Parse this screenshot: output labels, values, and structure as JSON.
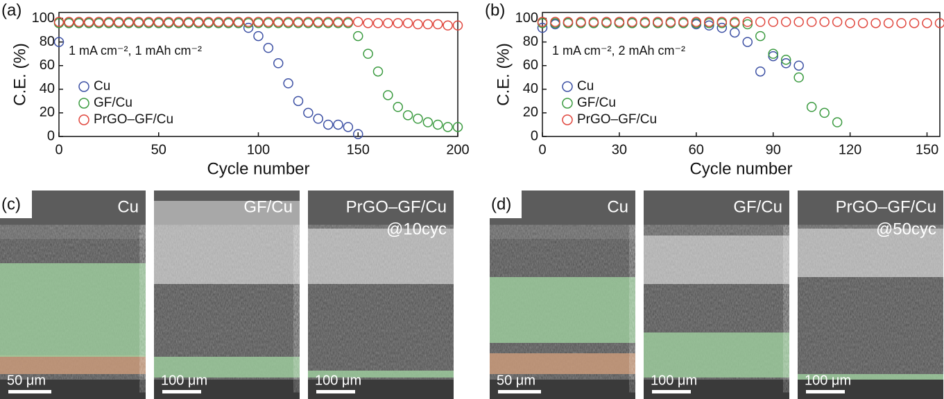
{
  "chart_data": [
    {
      "type": "scatter",
      "panel": "(a)",
      "annotation": "1 mA cm⁻², 1 mAh cm⁻²",
      "x_label": "Cycle number",
      "y_label": "C.E. (%)",
      "x": [
        0,
        5,
        10,
        15,
        20,
        25,
        30,
        35,
        40,
        45,
        50,
        55,
        60,
        65,
        70,
        75,
        80,
        85,
        90,
        95,
        100,
        105,
        110,
        115,
        120,
        125,
        130,
        135,
        140,
        145,
        150,
        155,
        160,
        165,
        170,
        175,
        180,
        185,
        190,
        195,
        200
      ],
      "xlim": [
        0,
        200
      ],
      "xticks": [
        0,
        50,
        100,
        150,
        200
      ],
      "ylim": [
        0,
        105
      ],
      "yticks": [
        0,
        20,
        40,
        60,
        80,
        100
      ],
      "series": [
        {
          "name": "Cu",
          "color": "#3b4fa3",
          "values": [
            80,
            96,
            96,
            96,
            96,
            96,
            96,
            96,
            96,
            96,
            96,
            96,
            96,
            96,
            96,
            96,
            96,
            96,
            96,
            92,
            85,
            75,
            62,
            45,
            30,
            20,
            15,
            10,
            10,
            8,
            2,
            null,
            null,
            null,
            null,
            null,
            null,
            null,
            null,
            null,
            null
          ]
        },
        {
          "name": "GF/Cu",
          "color": "#3a9a3f",
          "values": [
            96,
            96,
            96,
            96,
            96,
            96,
            96,
            96,
            96,
            96,
            96,
            96,
            96,
            96,
            96,
            96,
            96,
            96,
            96,
            96,
            96,
            96,
            96,
            96,
            96,
            96,
            96,
            96,
            96,
            96,
            85,
            70,
            55,
            35,
            25,
            18,
            15,
            12,
            10,
            8,
            8
          ]
        },
        {
          "name": "PrGO–GF/Cu",
          "color": "#e0453c",
          "values": [
            97,
            97,
            97,
            97,
            97,
            97,
            97,
            97,
            97,
            97,
            97,
            97,
            97,
            97,
            97,
            97,
            97,
            97,
            97,
            97,
            97,
            97,
            97,
            97,
            97,
            97,
            97,
            97,
            97,
            97,
            97,
            96,
            96,
            96,
            96,
            96,
            95,
            95,
            95,
            94,
            94
          ]
        }
      ]
    },
    {
      "type": "scatter",
      "panel": "(b)",
      "annotation": "1 mA cm⁻², 2 mAh cm⁻²",
      "x_label": "Cycle number",
      "y_label": "C.E. (%)",
      "x": [
        0,
        5,
        10,
        15,
        20,
        25,
        30,
        35,
        40,
        45,
        50,
        55,
        60,
        65,
        70,
        75,
        80,
        85,
        90,
        95,
        100,
        105,
        110,
        115,
        120,
        125,
        130,
        135,
        140,
        145,
        150,
        155
      ],
      "xlim": [
        0,
        155
      ],
      "xticks": [
        0,
        30,
        60,
        90,
        120,
        150
      ],
      "ylim": [
        0,
        105
      ],
      "yticks": [
        0,
        20,
        40,
        60,
        80,
        100
      ],
      "series": [
        {
          "name": "Cu",
          "color": "#3b4fa3",
          "values": [
            92,
            95,
            96,
            96,
            96,
            96,
            96,
            96,
            96,
            96,
            96,
            96,
            95,
            94,
            92,
            88,
            80,
            55,
            68,
            62,
            60,
            null,
            null,
            null,
            null,
            null,
            null,
            null,
            null,
            null,
            null,
            null
          ]
        },
        {
          "name": "GF/Cu",
          "color": "#3a9a3f",
          "values": [
            96,
            96,
            96,
            96,
            96,
            96,
            96,
            96,
            96,
            96,
            96,
            96,
            96,
            96,
            96,
            96,
            95,
            85,
            70,
            65,
            50,
            25,
            20,
            12,
            null,
            null,
            null,
            null,
            null,
            null,
            null,
            null
          ]
        },
        {
          "name": "PrGO–GF/Cu",
          "color": "#e0453c",
          "values": [
            97,
            97,
            97,
            97,
            97,
            97,
            97,
            97,
            97,
            97,
            97,
            97,
            97,
            97,
            97,
            97,
            97,
            97,
            97,
            97,
            97,
            97,
            97,
            97,
            96,
            96,
            96,
            96,
            96,
            96,
            96,
            96
          ]
        }
      ]
    }
  ],
  "panels": [
    {
      "letter": "(c)",
      "images": [
        {
          "label": "Cu",
          "scale": "50 μm"
        },
        {
          "label": "GF/Cu",
          "scale": "100 μm"
        },
        {
          "label": "PrGO–GF/Cu",
          "sub": "@10cyc",
          "scale": "100 μm"
        }
      ]
    },
    {
      "letter": "(d)",
      "images": [
        {
          "label": "Cu",
          "scale": "50 μm"
        },
        {
          "label": "GF/Cu",
          "scale": "100 μm"
        },
        {
          "label": "PrGO–GF/Cu",
          "sub": "@50cyc",
          "scale": "100 μm"
        }
      ]
    }
  ]
}
